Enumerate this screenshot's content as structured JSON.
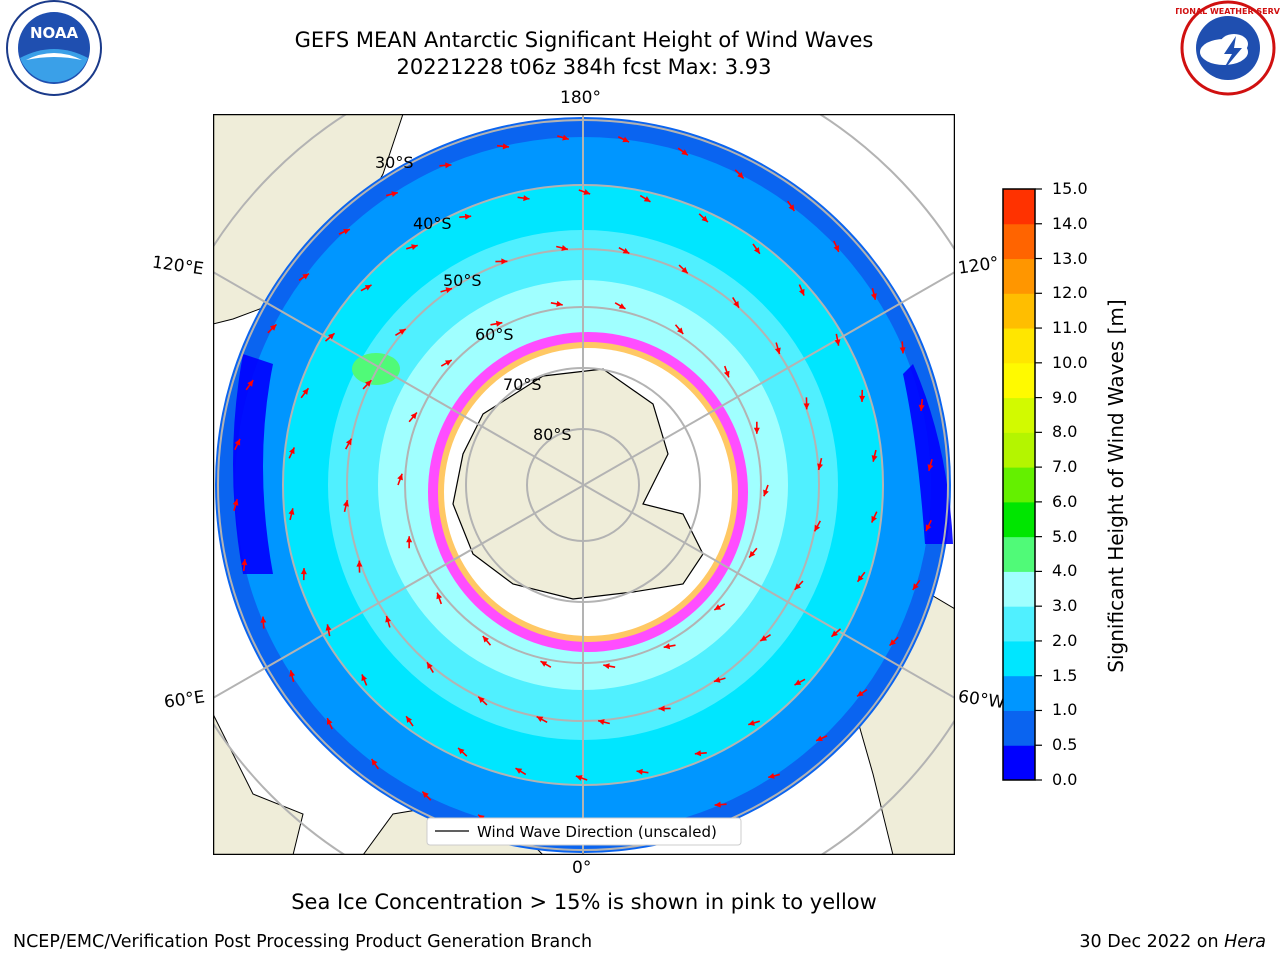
{
  "header": {
    "title_line1": "GEFS MEAN Antarctic Significant Height of Wind Waves",
    "title_line2": "20221228 t06z 384h fcst   Max: 3.93"
  },
  "logos": {
    "left": "noa-logo",
    "left_text": "NOAA",
    "right": "national-weather-service-logo",
    "right_text": "NATIONAL WEATHER SERVICE"
  },
  "map": {
    "projection": "south-polar-stereographic",
    "lon_labels": {
      "top": "180°",
      "bottom": "0°",
      "left_upper": "120°E",
      "left_lower": "60°E",
      "right_upper": "120°",
      "right_lower": "60°W"
    },
    "lat_labels": [
      "30°S",
      "40°S",
      "50°S",
      "60°S",
      "70°S",
      "80°S"
    ],
    "legend": "Wind Wave Direction (unscaled)",
    "colors": {
      "land": "#efedd9",
      "arrow": "#ff0000",
      "grid": "#b3b3b3"
    }
  },
  "colorbar": {
    "label": "Significant Height of Wind Waves [m]",
    "ticks": [
      "0.0",
      "0.5",
      "1.0",
      "1.5",
      "2.0",
      "3.0",
      "4.0",
      "5.0",
      "6.0",
      "7.0",
      "8.0",
      "9.0",
      "10.0",
      "11.0",
      "12.0",
      "13.0",
      "14.0",
      "15.0"
    ],
    "colors": [
      "#0000ff",
      "#0a64f0",
      "#0096ff",
      "#00e6ff",
      "#50f0ff",
      "#a0ffff",
      "#50fa78",
      "#00e600",
      "#64f000",
      "#b4f500",
      "#d2fa00",
      "#fffa00",
      "#ffe600",
      "#ffbe00",
      "#ff9600",
      "#ff6400",
      "#ff3200"
    ]
  },
  "footer": {
    "note": "Sea Ice Concentration > 15% is shown in pink to yellow",
    "credit": "NCEP/EMC/Verification Post Processing Product Generation Branch",
    "date": "30 Dec 2022 on",
    "machine": "Hera"
  }
}
